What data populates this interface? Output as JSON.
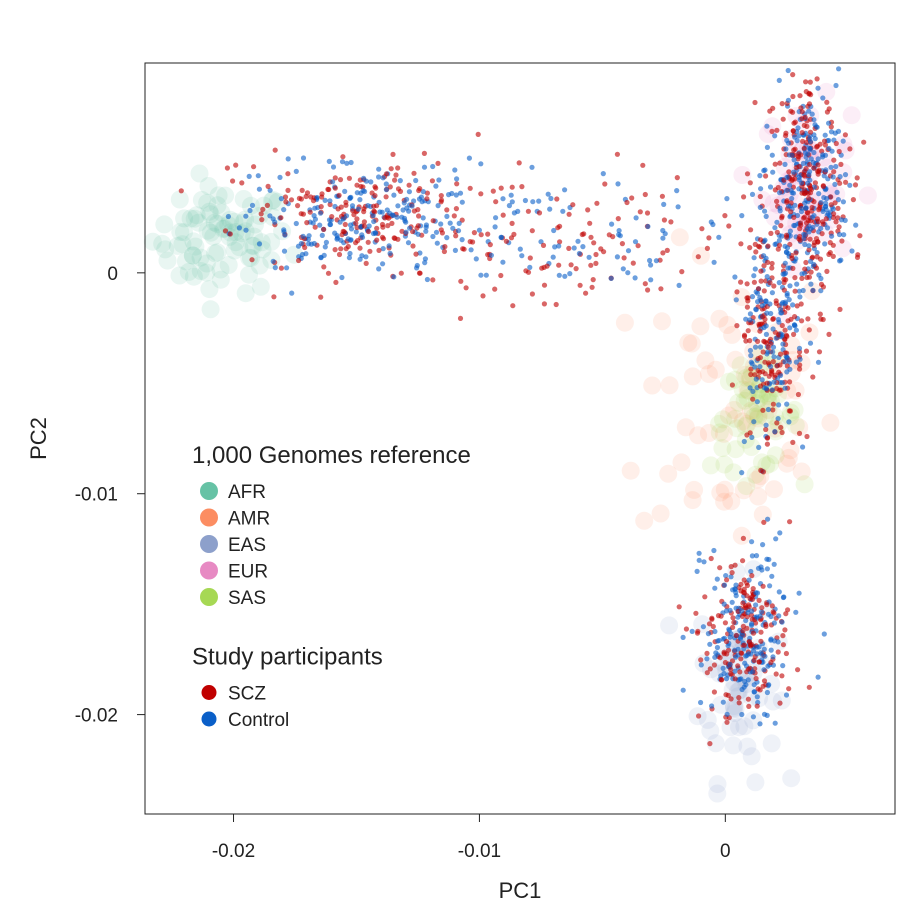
{
  "chart_data": {
    "type": "scatter",
    "title": "",
    "xlabel": "PC1",
    "ylabel": "PC2",
    "xlim": [
      -0.0236,
      0.0069
    ],
    "ylim": [
      -0.0245,
      0.0095
    ],
    "x_ticks": [
      {
        "value": -0.02,
        "label": "-0.02"
      },
      {
        "value": -0.01,
        "label": "-0.01"
      },
      {
        "value": 0,
        "label": "0"
      }
    ],
    "y_ticks": [
      {
        "value": 0,
        "label": "0"
      },
      {
        "value": -0.01,
        "label": "-0.01"
      },
      {
        "value": -0.02,
        "label": "-0.02"
      }
    ],
    "grid": false,
    "legend_position": "lower-left",
    "legend_groups": [
      {
        "title": "1,000 Genomes reference",
        "entries": [
          {
            "name": "AFR",
            "color": "#66c2a5"
          },
          {
            "name": "AMR",
            "color": "#fc8d62"
          },
          {
            "name": "EAS",
            "color": "#8da0cb"
          },
          {
            "name": "EUR",
            "color": "#e78ac3"
          },
          {
            "name": "SAS",
            "color": "#a6d854"
          }
        ]
      },
      {
        "title": "Study participants",
        "entries": [
          {
            "name": "SCZ",
            "color": "#c00000"
          },
          {
            "name": "Control",
            "color": "#0a5fc8"
          }
        ]
      }
    ],
    "reference_clusters": [
      {
        "name": "AFR",
        "center": [
          -0.0205,
          0.0015
        ],
        "spread": [
          0.0014,
          0.0012
        ],
        "count": 90
      },
      {
        "name": "AMR",
        "center": [
          0.0005,
          -0.006
        ],
        "spread": [
          0.002,
          0.0035
        ],
        "count": 70
      },
      {
        "name": "EAS",
        "center": [
          0.0005,
          -0.0185
        ],
        "spread": [
          0.0008,
          0.0022
        ],
        "count": 60
      },
      {
        "name": "EUR",
        "center": [
          0.0033,
          0.004
        ],
        "spread": [
          0.0009,
          0.0018
        ],
        "count": 60
      },
      {
        "name": "SAS",
        "center": [
          0.0012,
          -0.0065
        ],
        "spread": [
          0.0009,
          0.0012
        ],
        "count": 60
      }
    ],
    "participant_clusters": [
      {
        "name": "African-ancestry cluster",
        "center": [
          -0.015,
          0.0025
        ],
        "spread": [
          0.0025,
          0.0012
        ]
      },
      {
        "name": "European cluster",
        "center": [
          0.0033,
          0.0035
        ],
        "spread": [
          0.0008,
          0.0025
        ]
      },
      {
        "name": "Admixed arm",
        "center": [
          0.0018,
          -0.003
        ],
        "spread": [
          0.0007,
          0.0025
        ]
      },
      {
        "name": "East Asian cluster",
        "center": [
          0.0008,
          -0.0165
        ],
        "spread": [
          0.0009,
          0.0018
        ]
      },
      {
        "name": "Bridge",
        "center": [
          -0.006,
          0.0015
        ],
        "spread": [
          0.004,
          0.0015
        ]
      }
    ]
  }
}
